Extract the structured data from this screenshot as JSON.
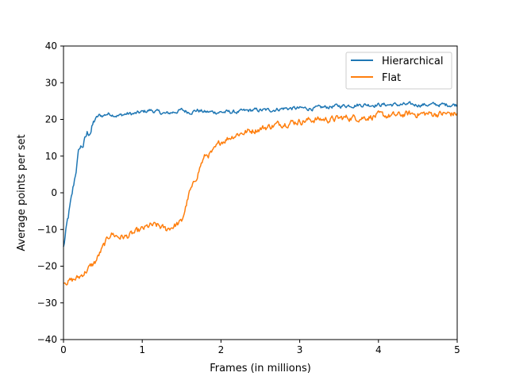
{
  "chart_data": {
    "type": "line",
    "title": "",
    "xlabel": "Frames (in millions)",
    "ylabel": "Average points per set",
    "xlim": [
      0,
      5
    ],
    "ylim": [
      -40,
      40
    ],
    "xticks": [
      0,
      1,
      2,
      3,
      4,
      5
    ],
    "xtick_labels": [
      "0",
      "1",
      "2",
      "3",
      "4",
      "5"
    ],
    "yticks": [
      -40,
      -30,
      -20,
      -10,
      0,
      10,
      20,
      30,
      40
    ],
    "ytick_labels": [
      "−40",
      "−30",
      "−20",
      "−10",
      "0",
      "10",
      "20",
      "30",
      "40"
    ],
    "grid": false,
    "legend_position": "upper right",
    "series": [
      {
        "name": "Hierarchical",
        "color": "#1f77b4",
        "x": [
          0,
          0.05,
          0.1,
          0.15,
          0.2,
          0.25,
          0.3,
          0.35,
          0.4,
          0.45,
          0.5,
          0.55,
          0.6,
          0.7,
          0.8,
          0.9,
          1.0,
          1.1,
          1.2,
          1.3,
          1.4,
          1.5,
          1.6,
          1.7,
          1.8,
          1.9,
          2.0,
          2.2,
          2.4,
          2.6,
          2.8,
          3.0,
          3.2,
          3.4,
          3.6,
          3.8,
          4.0,
          4.5,
          5.0
        ],
        "y": [
          -15,
          -8,
          -2,
          5,
          12,
          13,
          16,
          17,
          20,
          21,
          21,
          21.5,
          21.5,
          21,
          21.5,
          21.5,
          22,
          22.5,
          22,
          21.5,
          22,
          22.5,
          22,
          22.5,
          22,
          22,
          22,
          22,
          22.5,
          22.5,
          23,
          23,
          23,
          23.5,
          23.8,
          24,
          24,
          24,
          24
        ]
      },
      {
        "name": "Flat",
        "color": "#ff7f0e",
        "x": [
          0,
          0.1,
          0.2,
          0.3,
          0.4,
          0.45,
          0.5,
          0.55,
          0.6,
          0.65,
          0.7,
          0.8,
          0.9,
          1.0,
          1.1,
          1.2,
          1.3,
          1.4,
          1.5,
          1.55,
          1.6,
          1.65,
          1.7,
          1.75,
          1.8,
          1.9,
          2.0,
          2.1,
          2.2,
          2.4,
          2.6,
          2.8,
          3.0,
          3.2,
          3.4,
          3.6,
          3.8,
          4.0,
          4.2,
          4.4,
          4.6,
          4.8,
          5.0
        ],
        "y": [
          -24,
          -24,
          -23,
          -21,
          -19,
          -17,
          -15,
          -13,
          -11,
          -11.5,
          -12,
          -12,
          -11,
          -10,
          -9,
          -9,
          -10,
          -9,
          -8,
          -4,
          0,
          2,
          5,
          8,
          10,
          11,
          14,
          15,
          16,
          17,
          18,
          19,
          19.5,
          20,
          20,
          20.5,
          20.5,
          21,
          21,
          21.5,
          21.5,
          21.5,
          21.5
        ]
      }
    ]
  }
}
